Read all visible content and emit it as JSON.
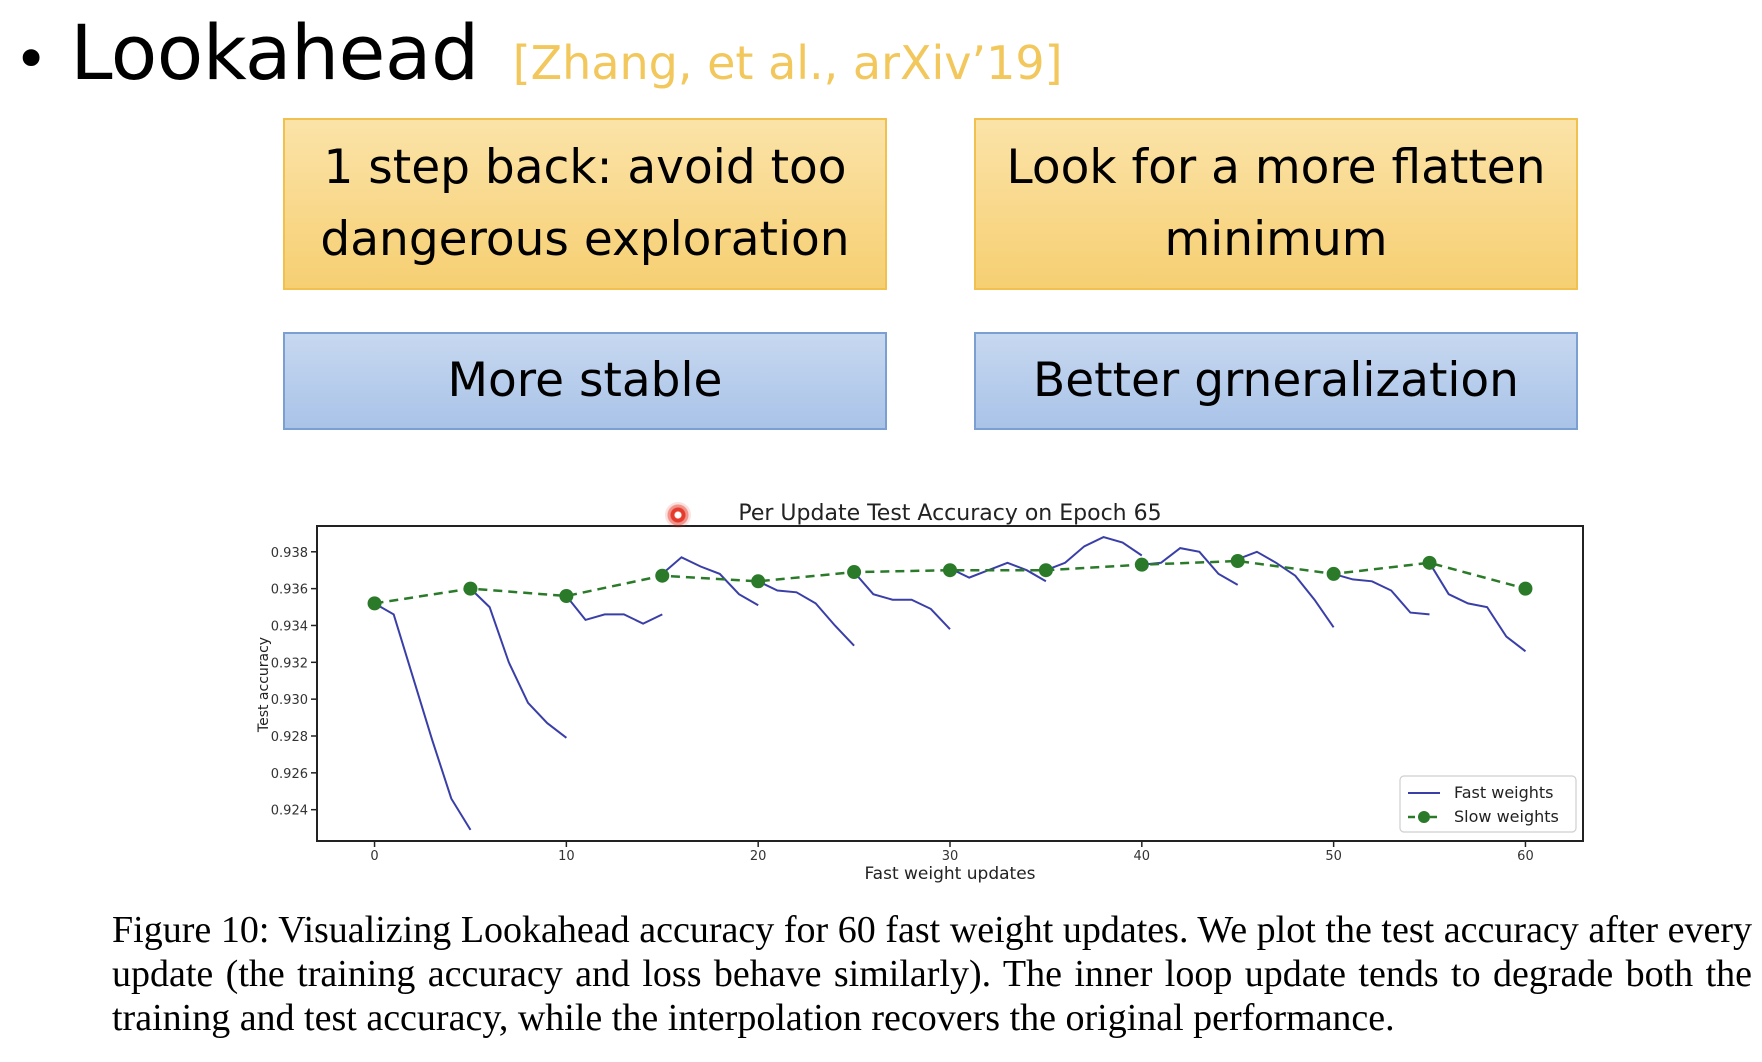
{
  "slide": {
    "bullet": "•",
    "title": "Lookahead",
    "citation": "[Zhang, et al., arXiv’19]",
    "boxes": [
      {
        "text": "1 step back: avoid too dangerous exploration",
        "color": "#f6cf72"
      },
      {
        "text": "Look for a more flatten minimum",
        "color": "#f6cf72"
      },
      {
        "text": "More stable",
        "color": "#a9c3e8"
      },
      {
        "text": "Better grneralization",
        "color": "#a9c3e8"
      }
    ],
    "caption": "Figure 10: Visualizing Lookahead accuracy for 60 fast weight updates. We plot the test accuracy after every update (the training accuracy and loss behave similarly). The inner loop update tends to degrade both the training and test accuracy, while the interpolation recovers the original performance."
  },
  "chart_data": {
    "type": "line",
    "title": "Per Update Test Accuracy on Epoch 65",
    "xlabel": "Fast weight updates",
    "ylabel": "Test accuracy",
    "xlim": [
      -3,
      63
    ],
    "ylim": [
      0.9223,
      0.9394
    ],
    "x_ticks": [
      0,
      10,
      20,
      30,
      40,
      50,
      60
    ],
    "y_ticks": [
      0.924,
      0.926,
      0.928,
      0.93,
      0.932,
      0.934,
      0.936,
      0.938
    ],
    "legend_position": "bottom-right",
    "series": [
      {
        "name": "Fast weights",
        "style": "solid",
        "color": "#3a3fa8",
        "segments": [
          [
            [
              0,
              0.9352
            ],
            [
              1,
              0.9346
            ],
            [
              2,
              0.9312
            ],
            [
              3,
              0.9278
            ],
            [
              4,
              0.9246
            ],
            [
              5,
              0.9229
            ]
          ],
          [
            [
              5,
              0.936
            ],
            [
              6,
              0.935
            ],
            [
              7,
              0.932
            ],
            [
              8,
              0.9298
            ],
            [
              9,
              0.9287
            ],
            [
              10,
              0.9279
            ]
          ],
          [
            [
              10,
              0.9356
            ],
            [
              11,
              0.9343
            ],
            [
              12,
              0.9346
            ],
            [
              13,
              0.9346
            ],
            [
              14,
              0.9341
            ],
            [
              15,
              0.9346
            ]
          ],
          [
            [
              15,
              0.9368
            ],
            [
              16,
              0.9377
            ],
            [
              17,
              0.9372
            ],
            [
              18,
              0.9368
            ],
            [
              19,
              0.9357
            ],
            [
              20,
              0.9351
            ]
          ],
          [
            [
              20,
              0.9364
            ],
            [
              21,
              0.9359
            ],
            [
              22,
              0.9358
            ],
            [
              23,
              0.9352
            ],
            [
              24,
              0.934
            ],
            [
              25,
              0.9329
            ]
          ],
          [
            [
              25,
              0.9369
            ],
            [
              26,
              0.9357
            ],
            [
              27,
              0.9354
            ],
            [
              28,
              0.9354
            ],
            [
              29,
              0.9349
            ],
            [
              30,
              0.9338
            ]
          ],
          [
            [
              30,
              0.9371
            ],
            [
              31,
              0.9366
            ],
            [
              32,
              0.937
            ],
            [
              33,
              0.9374
            ],
            [
              34,
              0.937
            ],
            [
              35,
              0.9364
            ]
          ],
          [
            [
              35,
              0.937
            ],
            [
              36,
              0.9374
            ],
            [
              37,
              0.9383
            ],
            [
              38,
              0.9388
            ],
            [
              39,
              0.9385
            ],
            [
              40,
              0.9378
            ]
          ],
          [
            [
              40,
              0.9373
            ],
            [
              41,
              0.9374
            ],
            [
              42,
              0.9382
            ],
            [
              43,
              0.938
            ],
            [
              44,
              0.9368
            ],
            [
              45,
              0.9362
            ]
          ],
          [
            [
              45,
              0.9376
            ],
            [
              46,
              0.938
            ],
            [
              47,
              0.9374
            ],
            [
              48,
              0.9367
            ],
            [
              49,
              0.9354
            ],
            [
              50,
              0.9339
            ]
          ],
          [
            [
              50,
              0.9368
            ],
            [
              51,
              0.9365
            ],
            [
              52,
              0.9364
            ],
            [
              53,
              0.9359
            ],
            [
              54,
              0.9347
            ],
            [
              55,
              0.9346
            ]
          ],
          [
            [
              55,
              0.9374
            ],
            [
              56,
              0.9357
            ],
            [
              57,
              0.9352
            ],
            [
              58,
              0.935
            ],
            [
              59,
              0.9334
            ],
            [
              60,
              0.9326
            ]
          ]
        ]
      },
      {
        "name": "Slow weights",
        "style": "dashed",
        "color": "#2a7a2a",
        "x": [
          0,
          5,
          10,
          15,
          20,
          25,
          30,
          35,
          40,
          45,
          50,
          55,
          60
        ],
        "values": [
          0.9352,
          0.936,
          0.9356,
          0.9367,
          0.9364,
          0.9369,
          0.937,
          0.937,
          0.9373,
          0.9375,
          0.9368,
          0.9374,
          0.936
        ]
      }
    ]
  }
}
